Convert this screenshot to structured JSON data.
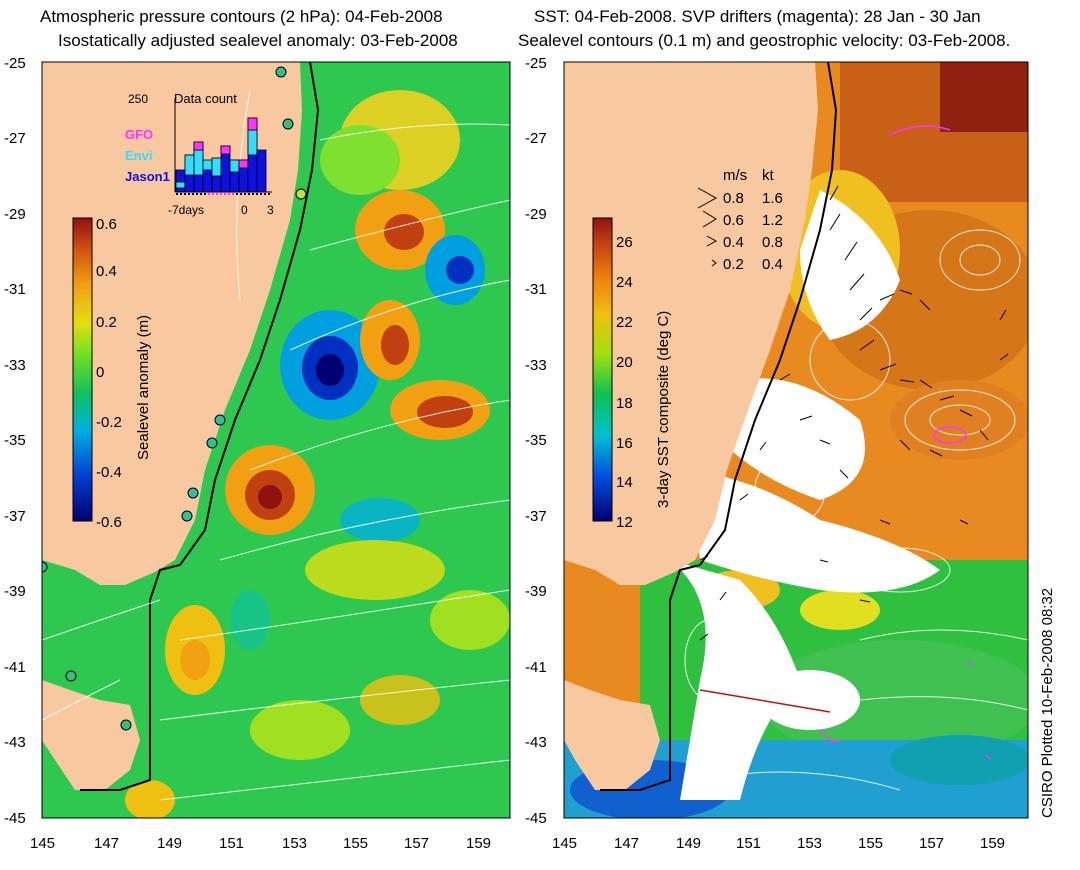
{
  "left_panel": {
    "title_line1": "Atmospheric pressure contours (2 hPa): 04-Feb-2008",
    "title_line2": "Isostatically adjusted sealevel anomaly: 03-Feb-2008",
    "colorbar": {
      "label": "Sealevel anomaly (m)",
      "ticks": [
        "0.6",
        "0.4",
        "0.2",
        "0",
        "-0.2",
        "-0.4",
        "-0.6"
      ],
      "range": [
        -0.6,
        0.6
      ]
    },
    "data_count_inset": {
      "title": "Data count",
      "ymax_label": "250",
      "legend": [
        {
          "name": "GFO",
          "color": "#ff33ff"
        },
        {
          "name": "Envi",
          "color": "#33ddff"
        },
        {
          "name": "Jason1",
          "color": "#1010dd"
        }
      ],
      "x_labels": [
        "-7days",
        "0",
        "3"
      ]
    }
  },
  "right_panel": {
    "title_line1": "SST: 04-Feb-2008. SVP drifters (magenta): 28 Jan - 30 Jan",
    "title_line2": "Sealevel contours (0.1 m) and geostrophic velocity: 03-Feb-2008.",
    "colorbar": {
      "label": "3-day SST composite (deg C)",
      "ticks": [
        "26",
        "24",
        "22",
        "20",
        "18",
        "16",
        "14",
        "12"
      ],
      "range": [
        12,
        27
      ]
    },
    "velocity_legend": {
      "unit_ms": "m/s",
      "unit_kt": "kt",
      "rows": [
        {
          "ms": "0.8",
          "kt": "1.6"
        },
        {
          "ms": "0.6",
          "kt": "1.2"
        },
        {
          "ms": "0.4",
          "kt": "0.8"
        },
        {
          "ms": "0.2",
          "kt": "0.4"
        }
      ]
    }
  },
  "axes": {
    "lat_labels": [
      "-25",
      "-27",
      "-29",
      "-31",
      "-33",
      "-35",
      "-37",
      "-39",
      "-41",
      "-43",
      "-45"
    ],
    "lon_labels": [
      "145",
      "147",
      "149",
      "151",
      "153",
      "155",
      "157",
      "159"
    ]
  },
  "credit": "CSIRO Plotted 10-Feb-2008 08:32",
  "colors": {
    "land": "#f8c8a0",
    "coast": "#000000",
    "contour": "#ffffff",
    "ocean_green": "#2ec850"
  }
}
